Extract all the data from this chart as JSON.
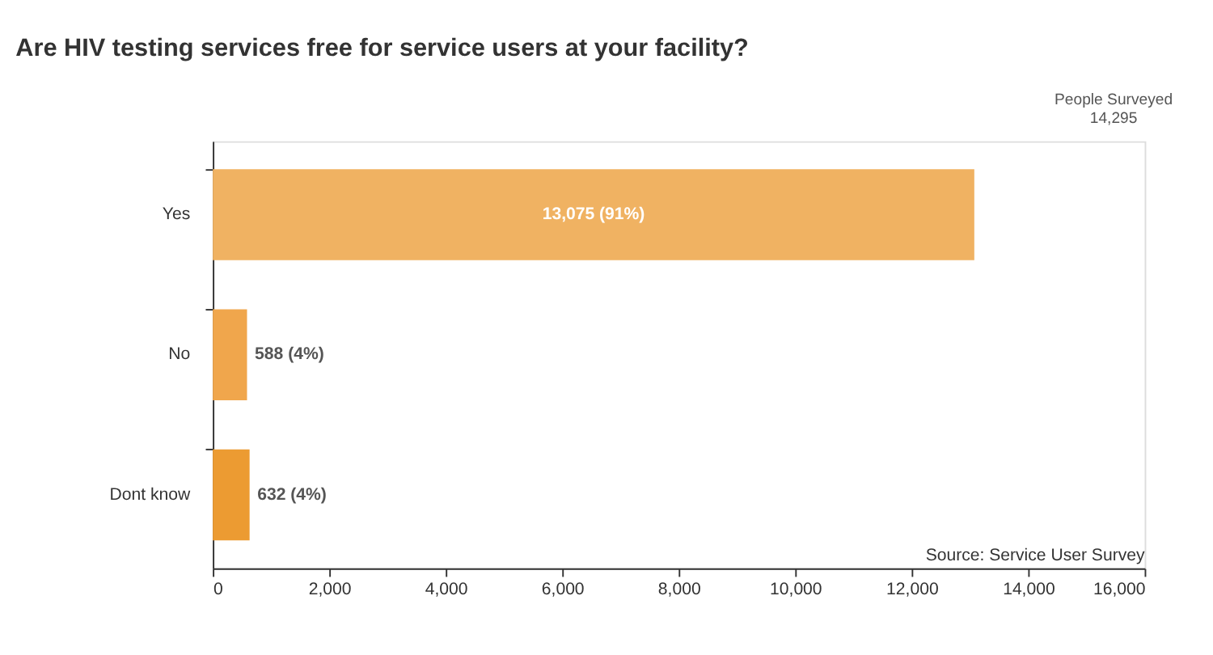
{
  "chart_data": {
    "type": "bar",
    "orientation": "horizontal",
    "title": "Are HIV testing services free for service users at your facility?",
    "categories": [
      "Yes",
      "No",
      "Dont know"
    ],
    "values": [
      13075,
      588,
      632
    ],
    "colors": [
      "#f0b262",
      "#f0a64c",
      "#ec9b32"
    ],
    "value_labels": [
      "13,075 (91%)",
      "588 (4%)",
      "632 (4%)"
    ],
    "xlim": [
      0,
      16000
    ],
    "xticks": [
      0,
      {
        "value": 2000,
        "label": "2,000"
      },
      {
        "value": 4000,
        "label": "4,000"
      },
      {
        "value": 6000,
        "label": "6,000"
      },
      {
        "value": 8000,
        "label": "8,000"
      },
      {
        "value": 10000,
        "label": "10,000"
      },
      {
        "value": 12000,
        "label": "12,000"
      },
      {
        "value": 14000,
        "label": "14,000"
      },
      {
        "value": 16000,
        "label": "16,000"
      }
    ],
    "grid": false,
    "annotations": [
      "People Surveyed\n14,295",
      "Source: Service User Survey"
    ]
  }
}
